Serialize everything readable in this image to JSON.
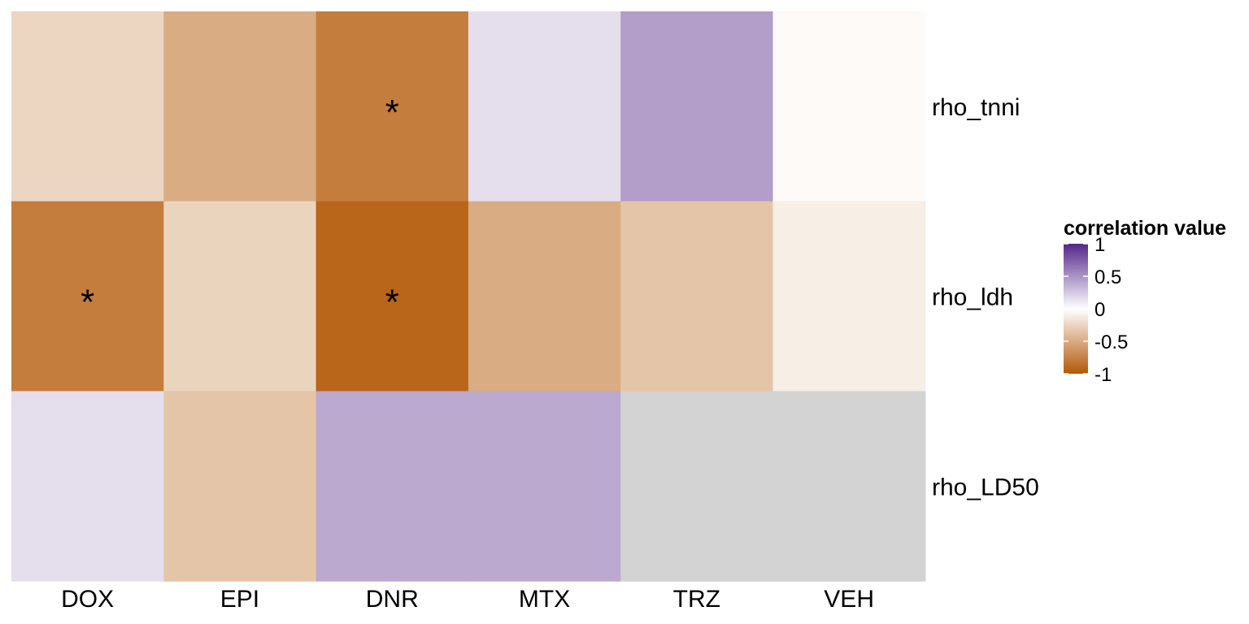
{
  "chart_data": {
    "type": "heatmap",
    "columns": [
      "DOX",
      "EPI",
      "DNR",
      "MTX",
      "TRZ",
      "VEH"
    ],
    "rows": [
      "rho_tnni",
      "rho_ldh",
      "rho_LD50"
    ],
    "values": [
      [
        -0.25,
        -0.5,
        -0.78,
        0.15,
        0.45,
        -0.03
      ],
      [
        -0.78,
        -0.26,
        -0.92,
        -0.5,
        -0.35,
        -0.1
      ],
      [
        0.15,
        -0.35,
        0.4,
        0.4,
        null,
        null
      ]
    ],
    "significant": [
      [
        false,
        false,
        true,
        false,
        false,
        false
      ],
      [
        true,
        false,
        true,
        false,
        false,
        false
      ],
      [
        false,
        false,
        false,
        false,
        false,
        false
      ]
    ],
    "marker": "*",
    "na_color": "#d3d3d3",
    "legend": {
      "title": "correlation value",
      "ticks": [
        1,
        0.5,
        0,
        -0.5,
        -1
      ],
      "tick_labels": [
        "1",
        "0.5",
        "0",
        "-0.5",
        "-1"
      ],
      "range": [
        -1,
        1
      ],
      "low_color": "#b35806",
      "mid_color": "#ffffff",
      "high_color": "#542788"
    }
  }
}
